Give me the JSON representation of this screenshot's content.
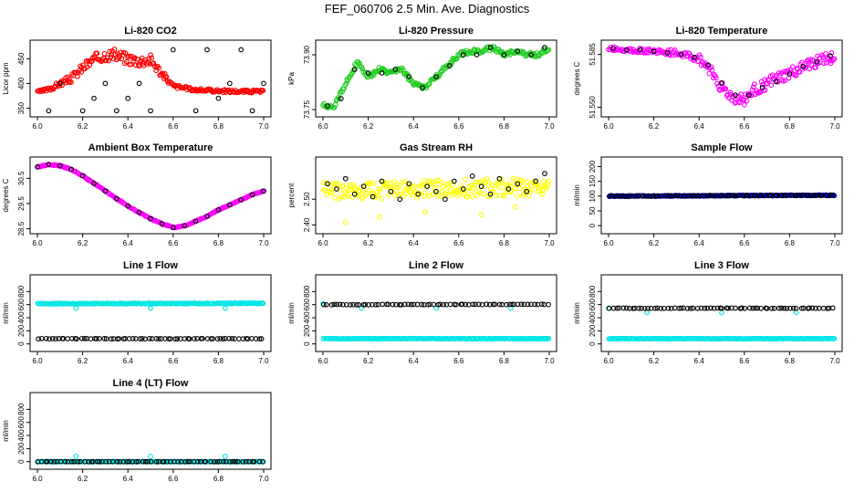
{
  "figure_title": "FEF_060706  2.5 Min. Ave. Diagnostics",
  "colors": {
    "red": "#ff0000",
    "green": "#22cc22",
    "magenta": "#ff00ff",
    "yellow": "#ffff00",
    "blue": "#0000cc",
    "cyan": "#00e5e5",
    "black": "#000000"
  },
  "chart_data": [
    {
      "type": "scatter",
      "title": "Li-820 CO2",
      "ylabel": "Licor ppm",
      "xlim": [
        6.0,
        7.0
      ],
      "ylim": [
        340,
        480
      ],
      "xticks": [
        "6.0",
        "6.2",
        "6.4",
        "6.6",
        "6.8",
        "7.0"
      ],
      "yticks": [
        "350",
        "400",
        "450"
      ],
      "series": [
        {
          "name": "dense",
          "color": "#ff0000",
          "x": [
            6.0,
            6.05,
            6.1,
            6.15,
            6.2,
            6.25,
            6.3,
            6.35,
            6.4,
            6.45,
            6.5,
            6.55,
            6.6,
            6.7,
            6.8,
            6.9,
            7.0
          ],
          "y": [
            383,
            388,
            400,
            410,
            432,
            448,
            458,
            457,
            450,
            446,
            448,
            420,
            395,
            387,
            385,
            384,
            384
          ],
          "spread": [
            2,
            4,
            6,
            8,
            10,
            12,
            12,
            12,
            12,
            12,
            12,
            8,
            4,
            3,
            3,
            3,
            3
          ]
        },
        {
          "name": "outliers",
          "color": "#000000",
          "x": [
            6.05,
            6.1,
            6.2,
            6.25,
            6.3,
            6.35,
            6.4,
            6.45,
            6.5,
            6.6,
            6.7,
            6.75,
            6.8,
            6.85,
            6.9,
            6.95,
            7.0
          ],
          "y": [
            345,
            400,
            345,
            370,
            400,
            345,
            370,
            400,
            345,
            468,
            345,
            468,
            370,
            400,
            468,
            345,
            400
          ]
        }
      ]
    },
    {
      "type": "scatter",
      "title": "Li-820 Pressure",
      "ylabel": "kPa",
      "xlim": [
        6.0,
        7.0
      ],
      "ylim": [
        73.74,
        73.93
      ],
      "xticks": [
        "6.0",
        "6.2",
        "6.4",
        "6.6",
        "6.8",
        "7.0"
      ],
      "yticks": [
        "73.75",
        "73.90"
      ],
      "series": [
        {
          "name": "dense",
          "color": "#22cc22",
          "x": [
            6.0,
            6.05,
            6.1,
            6.15,
            6.2,
            6.25,
            6.3,
            6.35,
            6.4,
            6.45,
            6.5,
            6.55,
            6.6,
            6.65,
            6.7,
            6.75,
            6.8,
            6.85,
            6.9,
            6.95,
            7.0
          ],
          "y": [
            73.76,
            73.76,
            73.82,
            73.88,
            73.84,
            73.86,
            73.85,
            73.86,
            73.82,
            73.81,
            73.84,
            73.87,
            73.9,
            73.91,
            73.91,
            73.92,
            73.9,
            73.91,
            73.9,
            73.9,
            73.92
          ],
          "spread": [
            0.006,
            0.006,
            0.006,
            0.006,
            0.006,
            0.006,
            0.006,
            0.006,
            0.006,
            0.006,
            0.006,
            0.006,
            0.006,
            0.006,
            0.006,
            0.006,
            0.006,
            0.006,
            0.006,
            0.006,
            0.006
          ]
        },
        {
          "name": "averages",
          "color": "#000000",
          "x": [
            6.02,
            6.08,
            6.14,
            6.2,
            6.26,
            6.32,
            6.38,
            6.44,
            6.5,
            6.56,
            6.62,
            6.68,
            6.74,
            6.8,
            6.86,
            6.92,
            6.98
          ],
          "y": [
            73.76,
            73.78,
            73.86,
            73.85,
            73.85,
            73.86,
            73.84,
            73.81,
            73.84,
            73.87,
            73.9,
            73.9,
            73.92,
            73.9,
            73.91,
            73.9,
            73.92
          ]
        }
      ]
    },
    {
      "type": "scatter",
      "title": "Li-820 Temperature",
      "ylabel": "degrees C",
      "xlim": [
        6.0,
        7.0
      ],
      "ylim": [
        51.546,
        51.592
      ],
      "xticks": [
        "6.0",
        "6.2",
        "6.4",
        "6.6",
        "6.8",
        "7.0"
      ],
      "yticks": [
        "51.550",
        "51.585"
      ],
      "series": [
        {
          "name": "dense",
          "color": "#ff00ff",
          "x": [
            6.0,
            6.1,
            6.2,
            6.3,
            6.4,
            6.45,
            6.5,
            6.55,
            6.6,
            6.65,
            6.7,
            6.8,
            6.9,
            7.0
          ],
          "y": [
            51.589,
            51.588,
            51.587,
            51.586,
            51.582,
            51.575,
            51.563,
            51.556,
            51.555,
            51.562,
            51.566,
            51.572,
            51.579,
            51.584
          ],
          "spread": [
            0.0015,
            0.0015,
            0.0015,
            0.002,
            0.003,
            0.004,
            0.004,
            0.004,
            0.004,
            0.004,
            0.004,
            0.004,
            0.004,
            0.004
          ]
        },
        {
          "name": "averages",
          "color": "#000000",
          "x": [
            6.02,
            6.08,
            6.14,
            6.2,
            6.26,
            6.32,
            6.38,
            6.44,
            6.5,
            6.56,
            6.62,
            6.68,
            6.74,
            6.8,
            6.86,
            6.92,
            6.98
          ],
          "y": [
            51.589,
            51.588,
            51.588,
            51.587,
            51.586,
            51.585,
            51.583,
            51.578,
            51.566,
            51.558,
            51.558,
            51.563,
            51.567,
            51.572,
            51.577,
            51.58,
            51.584
          ]
        }
      ]
    },
    {
      "type": "scatter",
      "title": "Ambient Box Temperature",
      "ylabel": "degrees C",
      "xlim": [
        6.0,
        7.0
      ],
      "ylim": [
        28.45,
        31.2
      ],
      "xticks": [
        "6.0",
        "6.2",
        "6.4",
        "6.6",
        "6.8",
        "7.0"
      ],
      "yticks": [
        "28.5",
        "29.5",
        "30.5"
      ],
      "series": [
        {
          "name": "dense",
          "color": "#ff00ff",
          "x": [
            6.0,
            6.05,
            6.1,
            6.15,
            6.2,
            6.25,
            6.3,
            6.35,
            6.4,
            6.45,
            6.5,
            6.55,
            6.6,
            6.65,
            6.7,
            6.75,
            6.8,
            6.85,
            6.9,
            6.95,
            7.0
          ],
          "y": [
            30.95,
            31.05,
            31.0,
            30.85,
            30.6,
            30.3,
            30.0,
            29.7,
            29.4,
            29.15,
            28.9,
            28.7,
            28.55,
            28.62,
            28.8,
            29.0,
            29.25,
            29.45,
            29.65,
            29.85,
            30.0
          ],
          "spread": [
            0.02,
            0.02,
            0.02,
            0.02,
            0.02,
            0.02,
            0.02,
            0.02,
            0.02,
            0.02,
            0.02,
            0.02,
            0.02,
            0.02,
            0.02,
            0.02,
            0.02,
            0.02,
            0.02,
            0.02,
            0.02
          ]
        },
        {
          "name": "averages",
          "color": "#000000",
          "x": [
            6.0,
            6.05,
            6.1,
            6.15,
            6.2,
            6.25,
            6.3,
            6.35,
            6.4,
            6.45,
            6.5,
            6.55,
            6.6,
            6.65,
            6.7,
            6.75,
            6.8,
            6.85,
            6.9,
            6.95,
            7.0
          ],
          "y": [
            30.95,
            31.05,
            31.0,
            30.85,
            30.6,
            30.3,
            30.0,
            29.7,
            29.4,
            29.15,
            28.9,
            28.7,
            28.55,
            28.62,
            28.8,
            29.0,
            29.25,
            29.45,
            29.65,
            29.85,
            30.0
          ]
        }
      ]
    },
    {
      "type": "scatter",
      "title": "Gas Stream RH",
      "ylabel": "percent",
      "xlim": [
        6.0,
        7.0
      ],
      "ylim": [
        2.38,
        2.65
      ],
      "xticks": [
        "6.0",
        "6.2",
        "6.4",
        "6.6",
        "6.8",
        "7.0"
      ],
      "yticks": [
        "2.40",
        "2.50"
      ],
      "series": [
        {
          "name": "dense",
          "color": "#ffff00",
          "x": [
            6.0,
            7.0
          ],
          "y": [
            2.53,
            2.55
          ],
          "spread": [
            0.035,
            0.035
          ]
        },
        {
          "name": "outliers",
          "color": "#ffff00",
          "x": [
            6.1,
            6.25,
            6.45,
            6.7,
            6.85
          ],
          "y": [
            2.41,
            2.43,
            2.45,
            2.44,
            2.47
          ]
        },
        {
          "name": "averages",
          "color": "#000000",
          "x": [
            6.02,
            6.06,
            6.1,
            6.14,
            6.18,
            6.22,
            6.26,
            6.3,
            6.34,
            6.38,
            6.42,
            6.46,
            6.5,
            6.54,
            6.58,
            6.62,
            6.66,
            6.7,
            6.74,
            6.78,
            6.82,
            6.86,
            6.9,
            6.94,
            6.98
          ],
          "y": [
            2.56,
            2.54,
            2.58,
            2.52,
            2.55,
            2.51,
            2.57,
            2.53,
            2.5,
            2.56,
            2.52,
            2.55,
            2.53,
            2.5,
            2.57,
            2.54,
            2.59,
            2.55,
            2.52,
            2.58,
            2.54,
            2.56,
            2.53,
            2.57,
            2.6
          ]
        }
      ]
    },
    {
      "type": "scatter",
      "title": "Sample Flow",
      "ylabel": "ml/min",
      "xlim": [
        6.0,
        7.0
      ],
      "ylim": [
        -15,
        220
      ],
      "xticks": [
        "6.0",
        "6.2",
        "6.4",
        "6.6",
        "6.8",
        "7.0"
      ],
      "yticks": [
        "0",
        "50",
        "100",
        "150",
        "200"
      ],
      "series": [
        {
          "name": "dense",
          "color": "#0000cc",
          "x": [
            6.0,
            7.0
          ],
          "y": [
            100,
            103
          ],
          "spread": [
            1.5,
            1.5
          ]
        },
        {
          "name": "averages",
          "color": "#000000",
          "x": [
            6.0,
            7.0
          ],
          "y": [
            100,
            103
          ],
          "spread": [
            1,
            1
          ]
        }
      ]
    },
    {
      "type": "scatter",
      "title": "Line 1 Flow",
      "ylabel": "ml/min",
      "xlim": [
        6.0,
        7.0
      ],
      "ylim": [
        -60,
        1000
      ],
      "xticks": [
        "6.0",
        "6.2",
        "6.4",
        "6.6",
        "6.8",
        "7.0"
      ],
      "yticks": [
        "0",
        "200",
        "400",
        "600",
        "800"
      ],
      "series": [
        {
          "name": "dense",
          "color": "#00e5e5",
          "x": [
            6.0,
            7.0
          ],
          "y": [
            615,
            620
          ],
          "spread": [
            6,
            6
          ]
        },
        {
          "name": "outliers",
          "color": "#00e5e5",
          "x": [
            6.17,
            6.5,
            6.83
          ],
          "y": [
            545,
            545,
            545
          ]
        },
        {
          "name": "averages",
          "color": "#000000",
          "x": [
            6.0,
            7.0
          ],
          "y": [
            80,
            80
          ],
          "spread": [
            3,
            3
          ]
        }
      ]
    },
    {
      "type": "scatter",
      "title": "Line 2 Flow",
      "ylabel": "ml/min",
      "xlim": [
        6.0,
        7.0
      ],
      "ylim": [
        -60,
        1000
      ],
      "xticks": [
        "6.0",
        "6.2",
        "6.4",
        "6.6",
        "6.8",
        "7.0"
      ],
      "yticks": [
        "0",
        "200",
        "400",
        "600",
        "800"
      ],
      "series": [
        {
          "name": "dense",
          "color": "#00e5e5",
          "x": [
            6.0,
            7.0
          ],
          "y": [
            80,
            80
          ],
          "spread": [
            4,
            4
          ]
        },
        {
          "name": "outliers",
          "color": "#00e5e5",
          "x": [
            6.0,
            6.17,
            6.5,
            6.83
          ],
          "y": [
            610,
            545,
            545,
            545
          ]
        },
        {
          "name": "averages",
          "color": "#000000",
          "x": [
            6.02,
            7.0
          ],
          "y": [
            600,
            605
          ],
          "spread": [
            4,
            4
          ]
        }
      ]
    },
    {
      "type": "scatter",
      "title": "Line 3 Flow",
      "ylabel": "ml/min",
      "xlim": [
        6.0,
        7.0
      ],
      "ylim": [
        -60,
        1000
      ],
      "xticks": [
        "6.0",
        "6.2",
        "6.4",
        "6.6",
        "6.8",
        "7.0"
      ],
      "yticks": [
        "0",
        "200",
        "400",
        "600",
        "800"
      ],
      "series": [
        {
          "name": "dense",
          "color": "#00e5e5",
          "x": [
            6.0,
            7.0
          ],
          "y": [
            80,
            80
          ],
          "spread": [
            4,
            4
          ]
        },
        {
          "name": "outliers",
          "color": "#00e5e5",
          "x": [
            6.0,
            6.17,
            6.5,
            6.83
          ],
          "y": [
            545,
            480,
            480,
            480
          ]
        },
        {
          "name": "averages",
          "color": "#000000",
          "x": [
            6.02,
            7.0
          ],
          "y": [
            545,
            545
          ],
          "spread": [
            4,
            4
          ]
        }
      ]
    },
    {
      "type": "scatter",
      "title": "Line 4 (LT) Flow",
      "ylabel": "ml/min",
      "xlim": [
        6.0,
        7.0
      ],
      "ylim": [
        -60,
        1000
      ],
      "xticks": [
        "6.0",
        "6.2",
        "6.4",
        "6.6",
        "6.8",
        "7.0"
      ],
      "yticks": [
        "0",
        "200",
        "400",
        "600",
        "800"
      ],
      "series": [
        {
          "name": "dense",
          "color": "#00e5e5",
          "x": [
            6.0,
            7.0
          ],
          "y": [
            0,
            0
          ],
          "spread": [
            3,
            3
          ]
        },
        {
          "name": "outliers",
          "color": "#00e5e5",
          "x": [
            6.17,
            6.5,
            6.83
          ],
          "y": [
            80,
            80,
            80
          ]
        },
        {
          "name": "averages",
          "color": "#000000",
          "x": [
            6.0,
            7.0
          ],
          "y": [
            0,
            0
          ],
          "spread": [
            2,
            2
          ]
        }
      ]
    }
  ]
}
